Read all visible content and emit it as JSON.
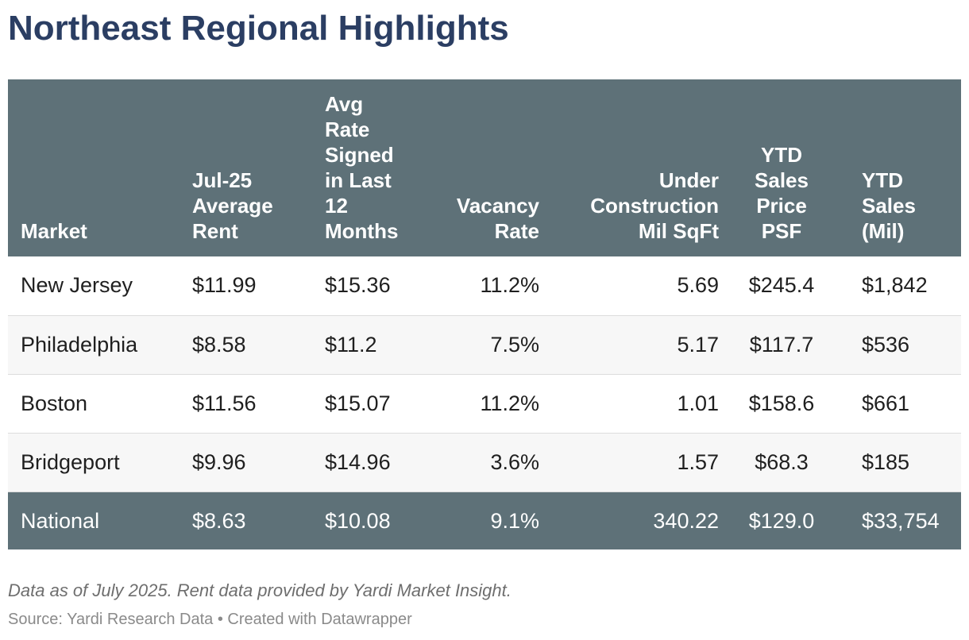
{
  "title": "Northeast Regional Highlights",
  "colors": {
    "title": "#2b3e63",
    "header_bg": "#5e7178",
    "total_row_bg": "#5e7178",
    "stripe_bg": "#f7f7f7"
  },
  "table": {
    "columns": [
      [
        "Market"
      ],
      [
        "Jul-25",
        "Average",
        "Rent"
      ],
      [
        "Avg",
        "Rate",
        "Signed",
        "in Last",
        "12",
        "Months"
      ],
      [
        "Vacancy",
        "Rate"
      ],
      [
        "Under",
        "Construction",
        "Mil SqFt"
      ],
      [
        "YTD",
        "Sales",
        "Price",
        "PSF"
      ],
      [
        "YTD",
        "Sales",
        "(Mil)"
      ]
    ],
    "rows": [
      [
        "New Jersey",
        "$11.99",
        "$15.36",
        "11.2%",
        "5.69",
        "$245.4",
        "$1,842"
      ],
      [
        "Philadelphia",
        "$8.58",
        "$11.2",
        "7.5%",
        "5.17",
        "$117.7",
        "$536"
      ],
      [
        "Boston",
        "$11.56",
        "$15.07",
        "11.2%",
        "1.01",
        "$158.6",
        "$661"
      ],
      [
        "Bridgeport",
        "$9.96",
        "$14.96",
        "3.6%",
        "1.57",
        "$68.3",
        "$185"
      ],
      [
        "National",
        "$8.63",
        "$10.08",
        "9.1%",
        "340.22",
        "$129.0",
        "$33,754"
      ]
    ]
  },
  "footnote": "Data as of July 2025. Rent data provided by Yardi Market Insight.",
  "source": "Source: Yardi Research Data • Created with Datawrapper"
}
